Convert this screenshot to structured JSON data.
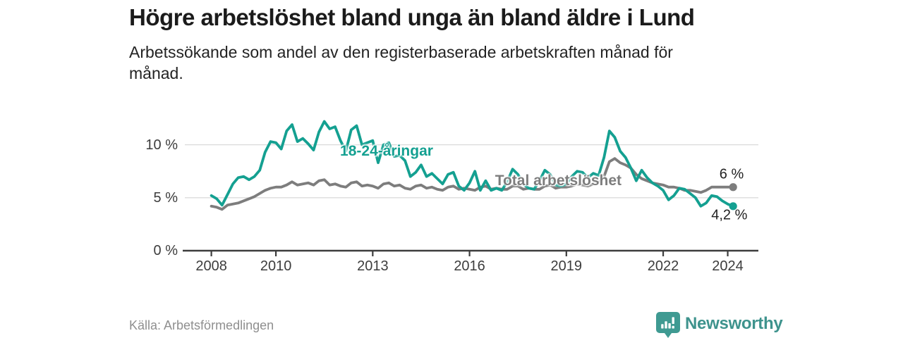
{
  "theme": {
    "accent_teal": "#14a091",
    "line_gray": "#7d7d7d",
    "grid_color": "#dcdcdc",
    "axis_color": "#3d3d3d",
    "text_dark": "#1b1b1b",
    "logo_teal": "#3f9a92"
  },
  "footer": {
    "source": "Källa: Arbetsförmedlingen",
    "logo_text": "Newsworthy",
    "logo_icon": "bar-chart-speech-bubble-icon"
  },
  "chart_data": {
    "type": "line",
    "title": "Högre arbetslöshet bland unga än bland äldre i Lund",
    "subtitle": "Arbetssökande som andel av den registerbaserade arbetskraften månad för månad.",
    "xlabel": "",
    "ylabel": "",
    "grid": "horizontal",
    "legend_position": "inline-labels",
    "xlim": [
      2007.2,
      2024.95
    ],
    "ylim": [
      0,
      13.03
    ],
    "x_ticks": [
      {
        "value": 2008,
        "label": "2008"
      },
      {
        "value": 2010,
        "label": "2010"
      },
      {
        "value": 2013,
        "label": "2013"
      },
      {
        "value": 2016,
        "label": "2016"
      },
      {
        "value": 2019,
        "label": "2019"
      },
      {
        "value": 2022,
        "label": "2022"
      },
      {
        "value": 2024,
        "label": "2024"
      }
    ],
    "y_ticks": [
      {
        "value": 0,
        "label": "0 %"
      },
      {
        "value": 5,
        "label": "5 %"
      },
      {
        "value": 10,
        "label": "10 %"
      }
    ],
    "series": [
      {
        "name": "Total arbetslöshet",
        "color": "#7d7d7d",
        "x_start": 2008.0,
        "x_step": 0.166667,
        "end_dot": true,
        "end_value_label": "6 %",
        "values": [
          4.2,
          4.1,
          3.9,
          4.3,
          4.4,
          4.5,
          4.7,
          4.9,
          5.1,
          5.4,
          5.7,
          5.9,
          6.0,
          6.0,
          6.2,
          6.5,
          6.2,
          6.3,
          6.4,
          6.2,
          6.6,
          6.7,
          6.2,
          6.3,
          6.1,
          6.0,
          6.4,
          6.5,
          6.1,
          6.2,
          6.1,
          5.9,
          6.3,
          6.4,
          6.1,
          6.2,
          5.9,
          5.8,
          6.1,
          6.2,
          5.9,
          6.0,
          5.8,
          5.7,
          6.0,
          6.1,
          5.8,
          5.9,
          5.8,
          5.7,
          6.0,
          6.1,
          5.8,
          5.9,
          5.8,
          5.8,
          6.1,
          6.1,
          5.8,
          5.9,
          5.8,
          5.8,
          6.1,
          6.2,
          5.9,
          6.0,
          6.0,
          6.1,
          6.3,
          6.2,
          6.1,
          6.3,
          6.4,
          7.0,
          8.4,
          8.7,
          8.3,
          8.1,
          7.8,
          7.2,
          6.8,
          6.6,
          6.4,
          6.3,
          6.2,
          6.0,
          6.0,
          5.9,
          5.7,
          5.7,
          5.6,
          5.5,
          5.7,
          6.0,
          6.0,
          6.0,
          6.0,
          6.0
        ]
      },
      {
        "name": "18-24-åringar",
        "color": "#14a091",
        "x_start": 2008.0,
        "x_step": 0.166667,
        "end_dot": true,
        "end_value_label": "4,2 %",
        "values": [
          5.2,
          4.9,
          4.3,
          5.3,
          6.3,
          6.9,
          7.0,
          6.7,
          7.0,
          7.6,
          9.3,
          10.3,
          10.2,
          9.6,
          11.3,
          11.9,
          10.3,
          10.6,
          10.1,
          9.5,
          11.2,
          12.2,
          11.5,
          11.7,
          10.4,
          9.4,
          11.4,
          11.8,
          10.0,
          10.2,
          10.4,
          8.3,
          10.0,
          10.2,
          8.9,
          9.0,
          8.5,
          7.0,
          7.4,
          8.1,
          7.0,
          7.3,
          6.8,
          6.3,
          7.2,
          7.4,
          6.1,
          5.7,
          6.4,
          7.5,
          5.7,
          6.6,
          5.7,
          5.9,
          5.7,
          6.5,
          7.7,
          7.2,
          6.3,
          5.9,
          5.8,
          6.6,
          7.6,
          7.2,
          6.2,
          6.1,
          6.3,
          7.0,
          7.5,
          7.4,
          6.9,
          7.3,
          7.1,
          8.8,
          11.3,
          10.7,
          9.4,
          8.8,
          7.8,
          6.6,
          7.6,
          6.9,
          6.4,
          6.1,
          5.7,
          4.8,
          5.2,
          5.9,
          5.8,
          5.4,
          5.0,
          4.2,
          4.5,
          5.2,
          5.1,
          4.7,
          4.4,
          4.2
        ]
      }
    ],
    "annotations": [
      {
        "id": "youth-series-label",
        "text": "18-24-åringar",
        "x": 2013.43,
        "y": 9.4,
        "color": "#14a091",
        "bold": true,
        "halo": true
      },
      {
        "id": "total-series-label",
        "text": "Total arbetslöshet",
        "x": 2018.75,
        "y": 6.55,
        "color": "#7d7d7d",
        "bold": true,
        "halo": true
      },
      {
        "id": "total-end-value-label",
        "text": "6 %",
        "x": 2024.12,
        "y": 7.2,
        "color": "#222222",
        "bold": false,
        "halo": false
      },
      {
        "id": "youth-end-value-label",
        "text": "4,2 %",
        "x": 2024.05,
        "y": 3.3,
        "color": "#222222",
        "bold": false,
        "halo": false
      }
    ]
  }
}
